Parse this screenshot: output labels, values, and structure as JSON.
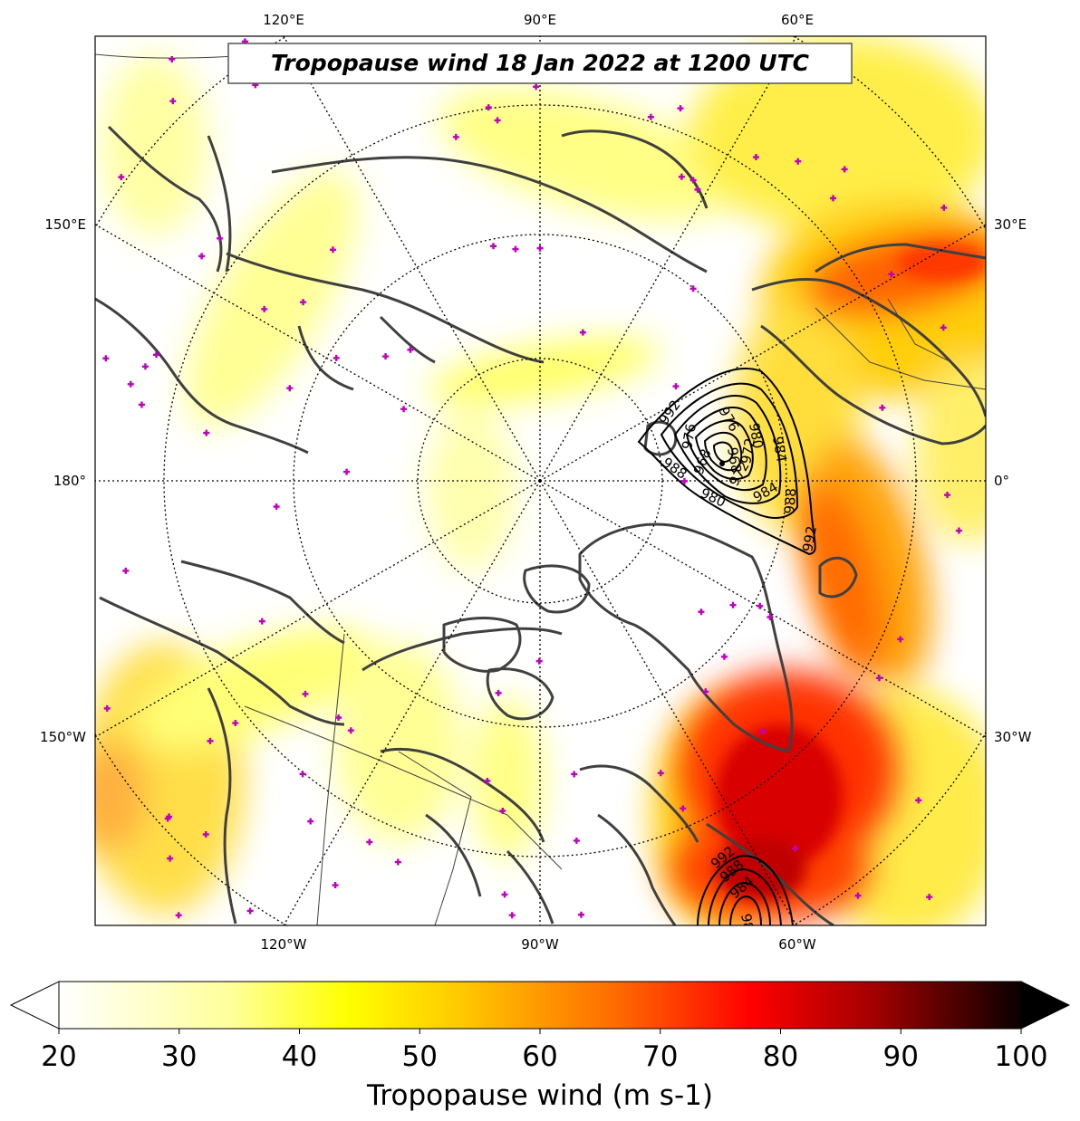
{
  "map": {
    "title": "Tropopause wind 18 Jan 2022 at 1200 UTC",
    "projection": "north-polar-stereographic",
    "graticule_latitudes": [
      50,
      60,
      70,
      80
    ],
    "lon_labels": {
      "top": [
        "120°E",
        "90°E",
        "60°E"
      ],
      "bottom": [
        "120°W",
        "90°W",
        "60°W"
      ],
      "left": [
        "150°E",
        "180°",
        "150°W"
      ],
      "right": [
        "30°E",
        "0°",
        "30°W"
      ]
    },
    "pressure_contours": {
      "color": "#000000",
      "labels": [
        "992",
        "988",
        "984",
        "980",
        "976",
        "972",
        "968",
        "992",
        "988",
        "984",
        "980",
        "976",
        "972",
        "968",
        "992",
        "988",
        "984",
        "980",
        "976",
        "972"
      ]
    },
    "station_marker_color": "#c000c0",
    "coastline_color": "#404040"
  },
  "colorbar": {
    "label": "Tropopause wind (m s-1)",
    "ticks": [
      "20",
      "30",
      "40",
      "50",
      "60",
      "70",
      "80",
      "90",
      "100"
    ],
    "min": 20,
    "max": 100,
    "extend": "both",
    "colormap": "hot_r"
  }
}
